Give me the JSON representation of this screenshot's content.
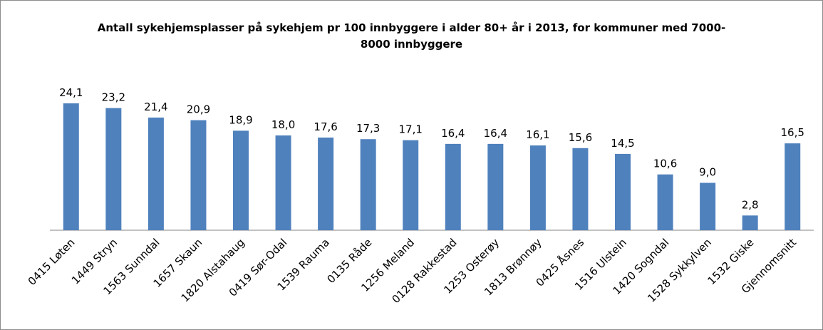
{
  "chart_data": {
    "type": "bar",
    "title": "Antall sykehjemsplasser på sykehjem pr 100 innbyggere i alder 80+ år i 2013, for kommuner med 7000-8000 innbyggere",
    "categories": [
      "0415 Løten",
      "1449 Stryn",
      "1563 Sunndal",
      "1657 Skaun",
      "1820 Alstahaug",
      "0419 Sør-Odal",
      "1539 Rauma",
      "0135 Råde",
      "1256 Meland",
      "0128 Rakkestad",
      "1253 Osterøy",
      "1813 Brønnøy",
      "0425 Åsnes",
      "1516 Ulstein",
      "1420 Sogndal",
      "1528 Sykkylven",
      "1532 Giske",
      "Gjennomsnitt"
    ],
    "values": [
      24.1,
      23.2,
      21.4,
      20.9,
      18.9,
      18.0,
      17.6,
      17.3,
      17.1,
      16.4,
      16.4,
      16.1,
      15.6,
      14.5,
      10.6,
      9.0,
      2.8,
      16.5
    ],
    "value_labels": [
      "24,1",
      "23,2",
      "21,4",
      "20,9",
      "18,9",
      "18,0",
      "17,6",
      "17,3",
      "17,1",
      "16,4",
      "16,4",
      "16,1",
      "15,6",
      "14,5",
      "10,6",
      "9,0",
      "2,8",
      "16,5"
    ],
    "color": "#4f81bd"
  }
}
